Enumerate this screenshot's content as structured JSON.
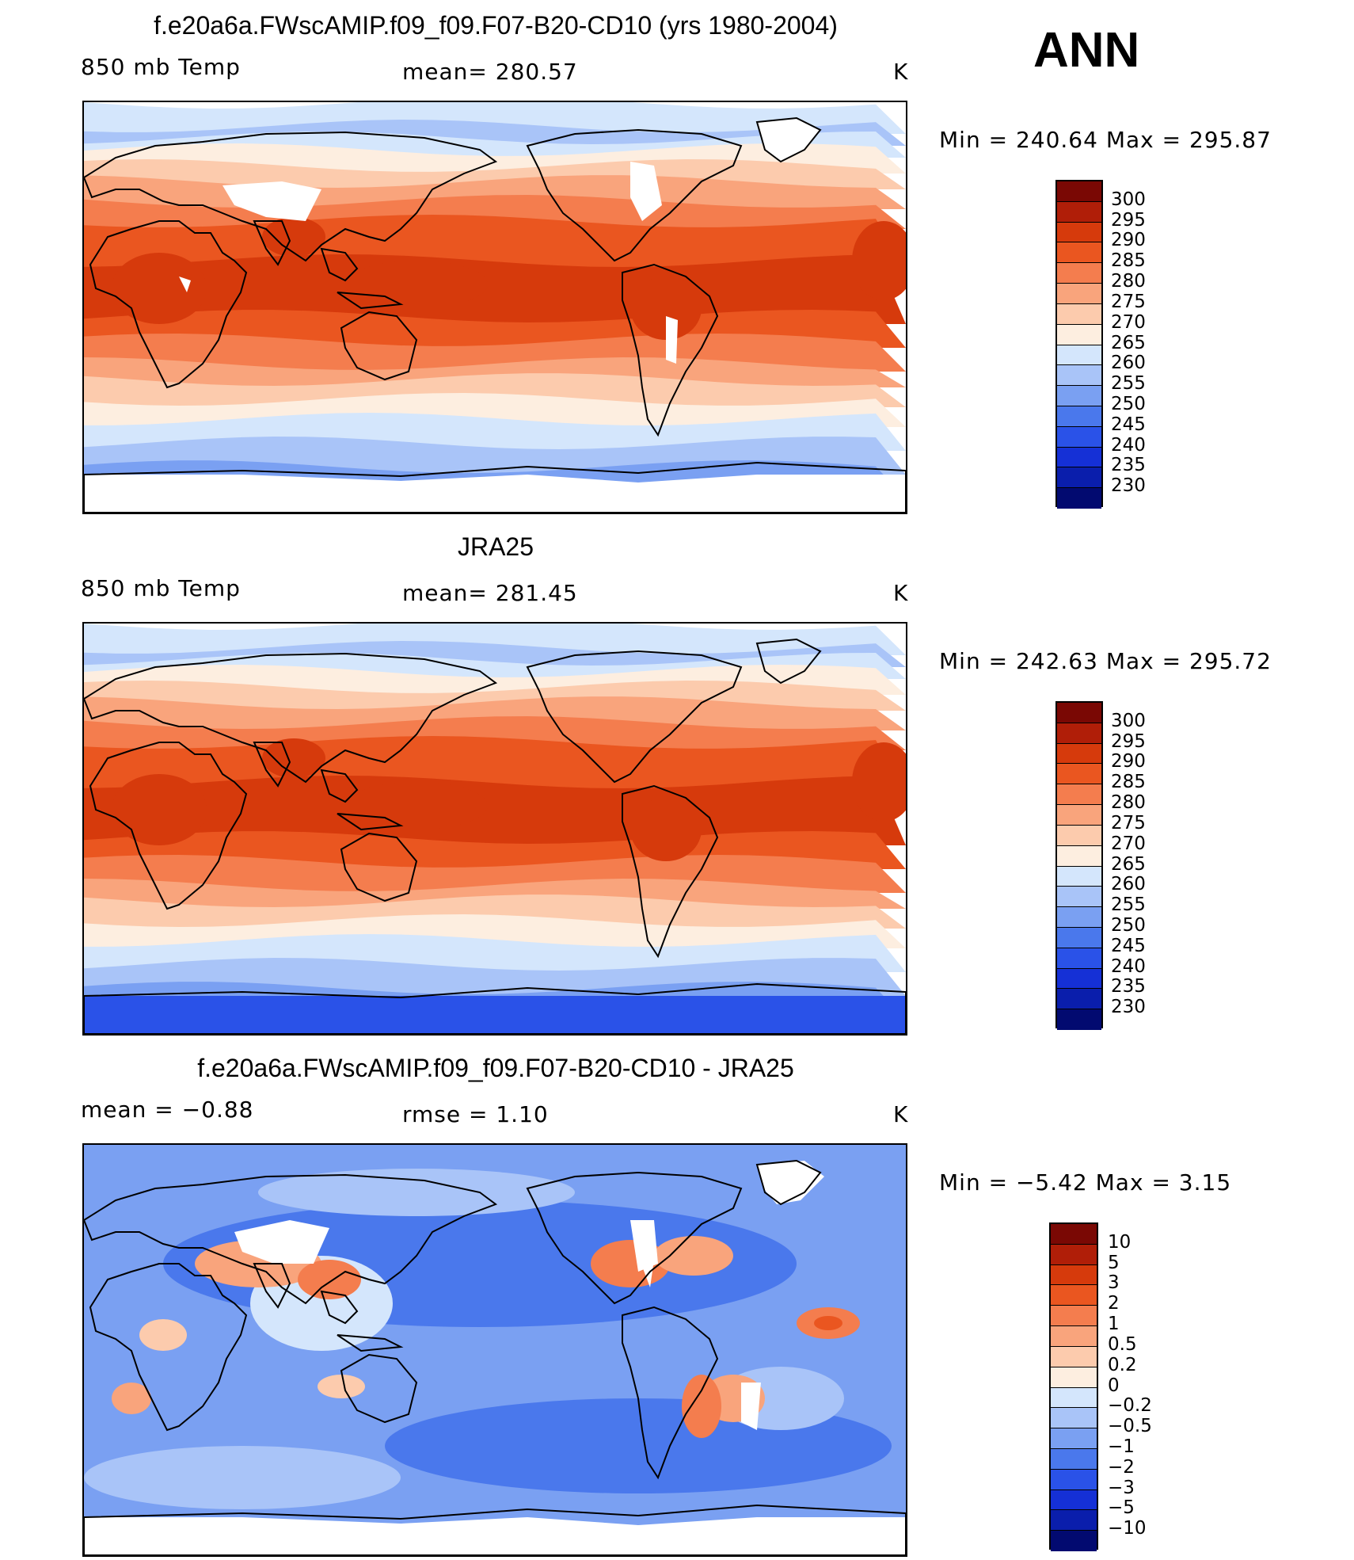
{
  "season": "ANN",
  "colors": {
    "abs_scale": [
      "#020a70",
      "#0a1eac",
      "#1530d6",
      "#2a52e8",
      "#4a78ec",
      "#7aa0f2",
      "#a9c4f8",
      "#d4e6fc",
      "#fdeee0",
      "#fccbad",
      "#f9a47c",
      "#f47d4e",
      "#ea5620",
      "#d63a0c",
      "#b01e08",
      "#7a0804"
    ],
    "diff_scale": [
      "#020a70",
      "#0a1eac",
      "#1530d6",
      "#2a52e8",
      "#4a78ec",
      "#7aa0f2",
      "#a9c4f8",
      "#d4e6fc",
      "#fdeee0",
      "#fccbad",
      "#f9a47c",
      "#f47d4e",
      "#ea5620",
      "#d63a0c",
      "#b01e08",
      "#7a0804"
    ],
    "land_outline": "#000000",
    "missing": "#ffffff"
  },
  "panels": [
    {
      "id": "model",
      "title": "f.e20a6a.FWscAMIP.f09_f09.F07-B20-CD10 (yrs 1980-2004)",
      "left_label": "850 mb Temp",
      "center_label": "mean=  280.57",
      "units": "K",
      "minmax": "Min  =  240.64  Max  =  295.87",
      "colorbar_labels": [
        "300",
        "295",
        "290",
        "285",
        "280",
        "275",
        "270",
        "265",
        "260",
        "255",
        "250",
        "245",
        "240",
        "235",
        "230"
      ]
    },
    {
      "id": "obs",
      "title": "JRA25",
      "left_label": "850 mb Temp",
      "center_label": "mean=  281.45",
      "units": "K",
      "minmax": "Min  =  242.63  Max  =  295.72",
      "colorbar_labels": [
        "300",
        "295",
        "290",
        "285",
        "280",
        "275",
        "270",
        "265",
        "260",
        "255",
        "250",
        "245",
        "240",
        "235",
        "230"
      ]
    },
    {
      "id": "diff",
      "title": "f.e20a6a.FWscAMIP.f09_f09.F07-B20-CD10 - JRA25",
      "left_label": "mean  =    −0.88",
      "center_label": "rmse  =     1.10",
      "units": "K",
      "minmax": "Min  =    −5.42  Max  =     3.15",
      "colorbar_labels": [
        "10",
        "5",
        "3",
        "2",
        "1",
        "0.5",
        "0.2",
        "0",
        "−0.2",
        "−0.5",
        "−1",
        "−2",
        "−3",
        "−5",
        "−10"
      ]
    }
  ]
}
